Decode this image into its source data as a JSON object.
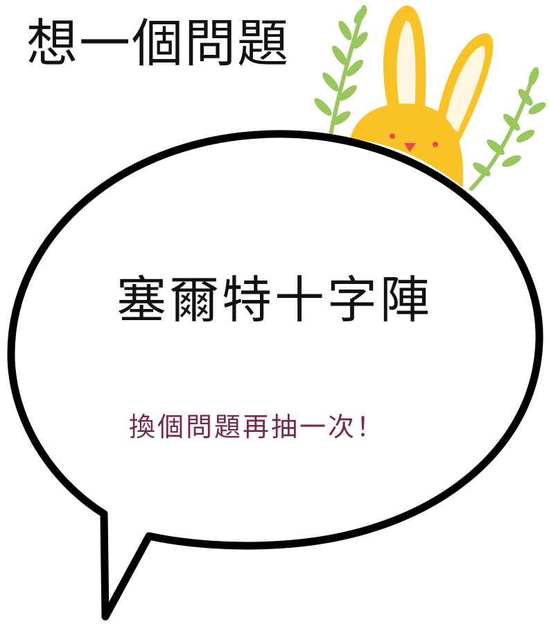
{
  "header": {
    "title": "想一個問題"
  },
  "card": {
    "topic": "塞爾特十字陣",
    "redraw_label": "換個問題再抽一次！"
  },
  "colors": {
    "bubble_outline": "#000000",
    "bubble_fill": "#ffffff",
    "bunny": "#f9c227",
    "bunny_inner_ear": "#ffffff",
    "bunny_eye": "#e84a4a",
    "leaf": "#9ac75d",
    "redraw_text": "#7a2647"
  },
  "icons": {
    "bunny": "bunny-icon",
    "branch": "leaf-branch-icon"
  }
}
